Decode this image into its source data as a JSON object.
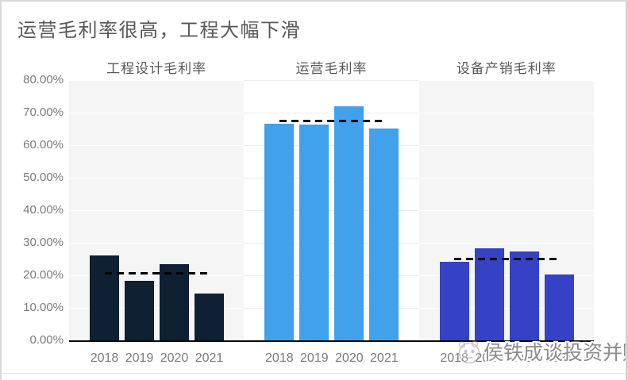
{
  "page": {
    "title": "运营毛利率很高，工程大幅下滑"
  },
  "watermark": {
    "text": "侯铁成谈投资并购",
    "logo": "panda-face-icon"
  },
  "colors": {
    "title_text": "#595959",
    "axis_text": "#7B7B7B",
    "band_shade": "#F5F5F6",
    "gridline_on_shade": "#FFFFFF",
    "gridline_on_white": "#ECECEC",
    "axis_line": "#0A0A0A",
    "average_dash": "#000000",
    "bar_engineering": "#0E2032",
    "bar_operations": "#41A1EB",
    "bar_equipment": "#3642C6"
  },
  "chart_data": {
    "type": "bar",
    "title": "运营毛利率很高，工程大幅下滑",
    "categories": [
      "2018",
      "2019",
      "2020",
      "2021"
    ],
    "ylabel": "",
    "xlabel": "",
    "ylim": [
      0,
      80
    ],
    "grid": true,
    "y_ticks": [
      "80.00%",
      "70.00%",
      "60.00%",
      "50.00%",
      "40.00%",
      "30.00%",
      "20.00%",
      "10.00%",
      "0.00%"
    ],
    "legend_position": "none",
    "panels": [
      {
        "label": "工程设计毛利率",
        "color": "#0E2032",
        "background": "#F5F5F6",
        "values": [
          26.1,
          18.3,
          23.5,
          14.5
        ],
        "average_line": 20.6
      },
      {
        "label": "运营毛利率",
        "color": "#41A1EB",
        "background": "#FFFFFF",
        "values": [
          66.5,
          66.4,
          71.9,
          65.1
        ],
        "average_line": 67.5
      },
      {
        "label": "设备产销毛利率",
        "color": "#3642C6",
        "background": "#F5F5F6",
        "values": [
          24.2,
          28.3,
          27.2,
          20.3
        ],
        "average_line": 25.0
      }
    ]
  }
}
